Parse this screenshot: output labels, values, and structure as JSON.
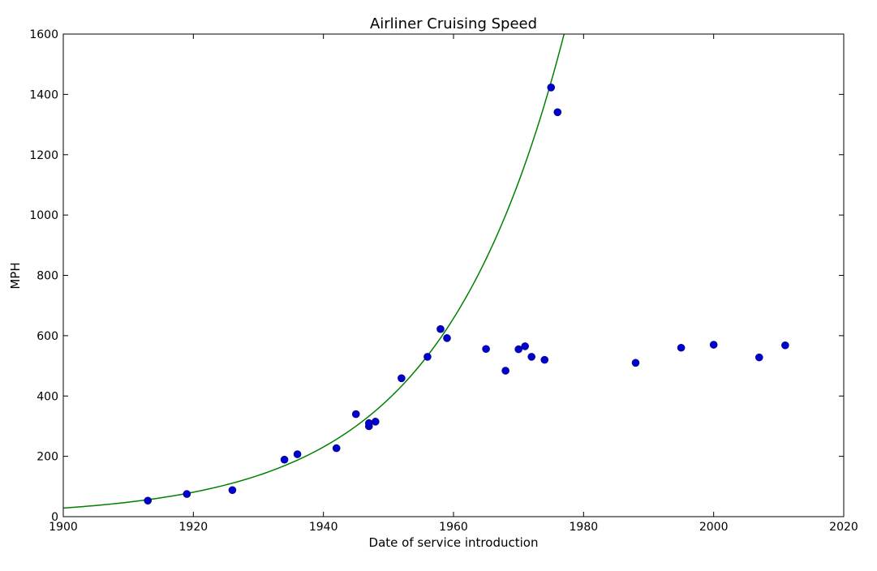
{
  "chart_data": {
    "type": "scatter",
    "title": "Airliner Cruising Speed",
    "xlabel": "Date of service introduction",
    "ylabel": "MPH",
    "xlim": [
      1900,
      2020
    ],
    "ylim": [
      0,
      1600
    ],
    "xticks": [
      1900,
      1920,
      1940,
      1960,
      1980,
      2000,
      2020
    ],
    "yticks": [
      0,
      200,
      400,
      600,
      800,
      1000,
      1200,
      1400,
      1600
    ],
    "grid": false,
    "points": [
      {
        "x": 1913,
        "y": 53
      },
      {
        "x": 1919,
        "y": 75
      },
      {
        "x": 1926,
        "y": 88
      },
      {
        "x": 1934,
        "y": 189
      },
      {
        "x": 1936,
        "y": 207
      },
      {
        "x": 1942,
        "y": 227
      },
      {
        "x": 1945,
        "y": 340
      },
      {
        "x": 1947,
        "y": 300
      },
      {
        "x": 1947,
        "y": 310
      },
      {
        "x": 1948,
        "y": 315
      },
      {
        "x": 1952,
        "y": 459
      },
      {
        "x": 1956,
        "y": 530
      },
      {
        "x": 1958,
        "y": 622
      },
      {
        "x": 1959,
        "y": 592
      },
      {
        "x": 1965,
        "y": 556
      },
      {
        "x": 1968,
        "y": 484
      },
      {
        "x": 1970,
        "y": 555
      },
      {
        "x": 1971,
        "y": 565
      },
      {
        "x": 1972,
        "y": 530
      },
      {
        "x": 1974,
        "y": 520
      },
      {
        "x": 1975,
        "y": 1423
      },
      {
        "x": 1976,
        "y": 1341
      },
      {
        "x": 1988,
        "y": 510
      },
      {
        "x": 1995,
        "y": 560
      },
      {
        "x": 2000,
        "y": 570
      },
      {
        "x": 2007,
        "y": 528
      },
      {
        "x": 2011,
        "y": 568
      }
    ],
    "trend": {
      "type": "exponential",
      "y_at_1900": 28.5,
      "y_at_1977": 1600
    },
    "colors": {
      "points": "#0000cc",
      "trend": "#008000"
    }
  }
}
